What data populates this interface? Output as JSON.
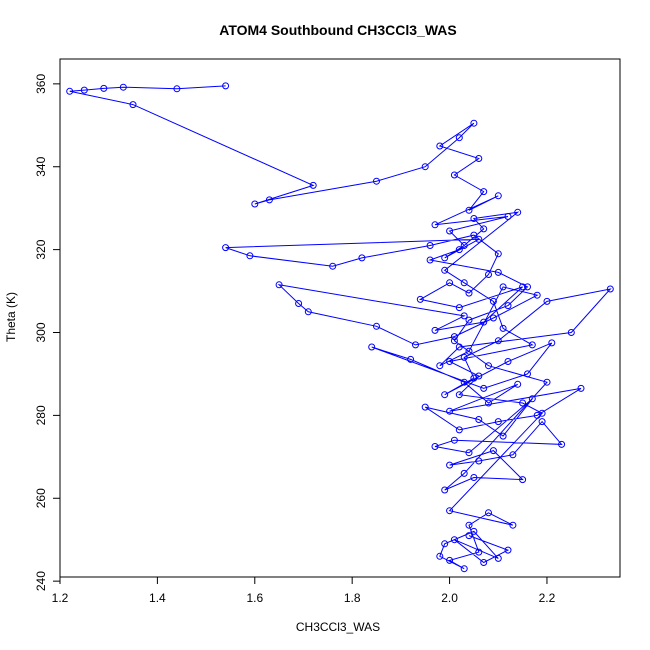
{
  "chart_data": {
    "type": "scatter",
    "connected": true,
    "title": "ATOM4 Southbound CH3CCl3_WAS",
    "xlabel": "CH3CCl3_WAS",
    "ylabel": "Theta (K)",
    "xlim": [
      1.2,
      2.35
    ],
    "ylim": [
      241,
      366
    ],
    "xticks": [
      1.2,
      1.4,
      1.6,
      1.8,
      2.0,
      2.2
    ],
    "xtick_labels": [
      "1.2",
      "1.4",
      "1.6",
      "1.8",
      "2.0",
      "2.2"
    ],
    "yticks": [
      240,
      260,
      280,
      300,
      320,
      340,
      360
    ],
    "ytick_labels": [
      "240",
      "260",
      "280",
      "300",
      "320",
      "340",
      "360"
    ],
    "color": "#0000ff",
    "marker": "open-circle",
    "series": [
      {
        "name": "CH3CCl3_WAS",
        "x": [
          1.54,
          1.44,
          1.33,
          1.29,
          1.25,
          1.22,
          1.35,
          1.72,
          1.6,
          1.63,
          1.85,
          1.95,
          2.02,
          2.05,
          1.98,
          2.06,
          2.01,
          2.07,
          2.04,
          2.1,
          1.97,
          2.12,
          2.0,
          2.03,
          1.99,
          2.06,
          1.54,
          1.59,
          1.76,
          1.82,
          1.96,
          2.05,
          2.1,
          2.08,
          2.04,
          2.0,
          1.94,
          2.02,
          2.15,
          2.07,
          1.97,
          2.03,
          1.65,
          1.69,
          1.71,
          1.85,
          1.93,
          2.01,
          2.09,
          2.18,
          2.11,
          2.04,
          1.98,
          2.02,
          2.25,
          2.33,
          2.2,
          2.1,
          2.03,
          2.05,
          1.99,
          2.12,
          2.21,
          2.16,
          2.07,
          1.84,
          1.92,
          2.03,
          2.08,
          2.14,
          2.0,
          2.27,
          2.18,
          2.1,
          2.02,
          1.95,
          2.06,
          2.11,
          2.17,
          2.04,
          1.97,
          2.01,
          2.23,
          2.19,
          2.13,
          2.06,
          2.0,
          2.09,
          2.15,
          2.05,
          1.99,
          2.03,
          2.2,
          2.08,
          2.01,
          2.04,
          2.12,
          2.16,
          2.1,
          1.96,
          2.02,
          2.07,
          2.05,
          2.14,
          1.99,
          2.03,
          2.09,
          2.11,
          2.17,
          2.0,
          2.06,
          2.02,
          2.15,
          2.19,
          2.0,
          2.13,
          2.08,
          2.04,
          2.06,
          2.0,
          2.03,
          1.98,
          1.99,
          2.05,
          2.1,
          2.01,
          2.07,
          2.12,
          2.04
        ],
        "y": [
          359.5,
          358.8,
          359.2,
          358.9,
          358.5,
          358.2,
          355.0,
          335.5,
          331.0,
          332.0,
          336.5,
          340.0,
          347.0,
          350.5,
          345.0,
          342.0,
          338.0,
          334.0,
          329.5,
          333.0,
          326.0,
          328.0,
          324.5,
          321.0,
          318.0,
          322.5,
          320.5,
          318.5,
          316.0,
          318.0,
          321.0,
          323.5,
          319.0,
          314.0,
          309.5,
          312.0,
          308.0,
          306.0,
          311.0,
          302.5,
          300.5,
          304.0,
          311.5,
          307.0,
          305.0,
          301.5,
          297.0,
          299.0,
          303.5,
          309.0,
          311.0,
          295.5,
          292.0,
          296.5,
          300.0,
          310.5,
          307.5,
          298.0,
          294.0,
          289.0,
          285.0,
          293.0,
          297.5,
          290.0,
          286.5,
          296.5,
          293.5,
          288.0,
          283.0,
          287.5,
          281.0,
          286.5,
          280.0,
          278.5,
          276.5,
          282.0,
          279.0,
          275.0,
          284.0,
          271.0,
          272.5,
          274.0,
          273.0,
          278.5,
          270.5,
          269.0,
          268.0,
          271.5,
          264.5,
          265.0,
          262.0,
          266.0,
          288.0,
          292.0,
          298.0,
          303.0,
          306.5,
          311.0,
          314.5,
          317.5,
          320.0,
          325.0,
          327.5,
          329.0,
          315.0,
          312.0,
          307.5,
          301.0,
          297.0,
          293.0,
          289.5,
          285.0,
          283.0,
          280.5,
          257.0,
          253.5,
          256.5,
          253.5,
          247.0,
          245.0,
          243.0,
          246.0,
          249.0,
          252.0,
          245.5,
          250.0,
          244.5,
          247.5,
          251.0
        ]
      }
    ]
  }
}
